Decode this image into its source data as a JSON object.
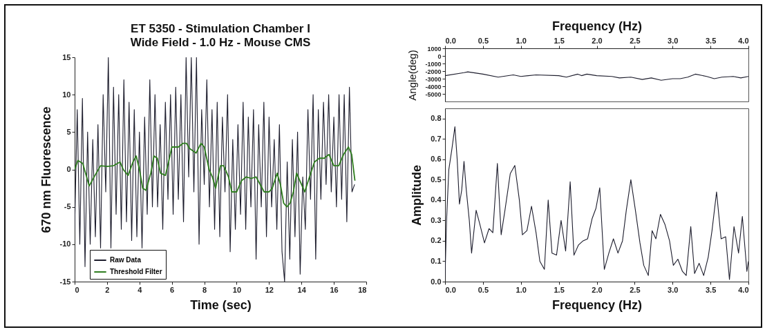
{
  "chart_data": [
    {
      "type": "line",
      "title": "ET 5350 - Stimulation Chamber I",
      "subtitle": "Wide Field - 1.0 Hz - Mouse CMS",
      "xlabel": "Time (sec)",
      "ylabel": "670 nm Fluorescence",
      "xlim": [
        0,
        18
      ],
      "xticks": [
        0,
        2,
        4,
        6,
        8,
        10,
        12,
        14,
        16,
        18
      ],
      "ylim": [
        -15,
        15
      ],
      "yticks": [
        -15,
        -10,
        -5,
        0,
        5,
        10,
        15
      ],
      "grid": false,
      "legend": "bottom left",
      "series": [
        {
          "name": "Raw Data",
          "color": "#1c1c2c",
          "x": [
            0,
            0.16,
            0.32,
            0.48,
            0.64,
            0.8,
            0.96,
            1.12,
            1.28,
            1.44,
            1.6,
            1.76,
            1.92,
            2.08,
            2.24,
            2.4,
            2.56,
            2.72,
            2.88,
            3.04,
            3.2,
            3.36,
            3.52,
            3.68,
            3.84,
            4,
            4.16,
            4.32,
            4.48,
            4.64,
            4.8,
            4.96,
            5.12,
            5.28,
            5.44,
            5.6,
            5.76,
            5.92,
            6.08,
            6.24,
            6.4,
            6.56,
            6.72,
            6.88,
            7.04,
            7.2,
            7.36,
            7.52,
            7.68,
            7.84,
            8,
            8.16,
            8.32,
            8.48,
            8.64,
            8.8,
            8.96,
            9.12,
            9.28,
            9.44,
            9.6,
            9.76,
            9.92,
            10.08,
            10.24,
            10.4,
            10.56,
            10.72,
            10.88,
            11.04,
            11.2,
            11.36,
            11.52,
            11.68,
            11.84,
            12,
            12.16,
            12.32,
            12.48,
            12.64,
            12.8,
            12.96,
            13.12,
            13.28,
            13.44,
            13.6,
            13.76,
            13.92,
            14.08,
            14.24,
            14.4,
            14.56,
            14.72,
            14.88,
            15.04,
            15.2,
            15.36,
            15.52,
            15.68,
            15.84,
            16,
            16.16,
            16.32,
            16.48,
            16.64,
            16.8,
            16.96,
            17.12,
            17.28
          ],
          "values": [
            -8,
            8,
            -10,
            9.5,
            -13,
            5,
            -10,
            4,
            -9,
            6,
            -10.5,
            10,
            -3,
            15,
            -10.5,
            11,
            -6,
            10,
            -8,
            12,
            -7,
            9,
            -9.5,
            8,
            -9,
            5,
            -10.5,
            7,
            -6,
            12,
            -5,
            10,
            -5,
            6,
            -8,
            9,
            -4,
            10,
            -6,
            11,
            -4,
            10,
            -7,
            15,
            -1,
            15,
            -3,
            15,
            -10,
            8,
            -2,
            12,
            -5,
            8,
            -8,
            9,
            -9,
            7,
            -3,
            10,
            -11,
            4,
            -8,
            6,
            -6,
            9,
            -8,
            7,
            -5,
            8,
            -12,
            6,
            -5,
            9,
            -9,
            7,
            -5,
            4,
            -8,
            6,
            -11,
            -15,
            1,
            -12,
            4,
            -9,
            5,
            -14,
            -1,
            -8,
            8,
            -4,
            10,
            -12,
            8,
            -4,
            9,
            -2,
            10,
            -3,
            7,
            -5,
            10,
            -4,
            10,
            -7,
            11,
            -3,
            -2
          ]
        },
        {
          "name": "Threshold Filter",
          "color": "#2e7d1e",
          "x": [
            0,
            0.2,
            0.5,
            0.9,
            1.2,
            1.6,
            2.0,
            2.4,
            2.8,
            3.0,
            3.3,
            3.6,
            3.8,
            4.0,
            4.2,
            4.4,
            4.7,
            4.9,
            5.1,
            5.3,
            5.6,
            5.8,
            6.0,
            6.4,
            6.7,
            6.9,
            7.1,
            7.5,
            7.8,
            8.0,
            8.3,
            8.5,
            8.7,
            9.0,
            9.2,
            9.5,
            9.7,
            10.0,
            10.3,
            10.6,
            10.9,
            11.2,
            11.4,
            11.7,
            12.0,
            12.2,
            12.5,
            12.7,
            12.9,
            13.1,
            13.3,
            13.5,
            13.7,
            14.0,
            14.2,
            14.5,
            14.8,
            15.1,
            15.4,
            15.7,
            16.0,
            16.3,
            16.6,
            16.9,
            17.1,
            17.3
          ],
          "values": [
            0,
            1.2,
            0.8,
            -2.2,
            -1,
            0.5,
            0.4,
            0.5,
            1,
            0,
            -0.8,
            1,
            1.8,
            0,
            -2.5,
            -2.8,
            -0.5,
            1.8,
            1.5,
            -0.5,
            -0.8,
            1,
            3,
            3,
            3.5,
            3.5,
            2.8,
            2.2,
            3.5,
            3,
            0,
            -1,
            -2.5,
            0.5,
            0.5,
            -1,
            -3,
            -3,
            -1.5,
            -1,
            -1.2,
            -1,
            -1.8,
            -3,
            -3,
            -2.5,
            -0.5,
            -2,
            -4.5,
            -5,
            -4.5,
            -3,
            -0.5,
            -2,
            -3,
            -1,
            1,
            1.5,
            1.5,
            2,
            0.5,
            0.5,
            2,
            3,
            2,
            -1.5
          ]
        }
      ]
    },
    {
      "type": "line",
      "xlabel": "Frequency (Hz)",
      "ylabel": "Angle(deg)",
      "xlim": [
        0,
        4
      ],
      "xticks": [
        {
          "value": 0,
          "label": "0.0"
        },
        {
          "value": 0.5,
          "label": "0.5"
        },
        {
          "value": 1,
          "label": "1.0"
        },
        {
          "value": 1.5,
          "label": "1.5"
        },
        {
          "value": 2,
          "label": "2.0"
        },
        {
          "value": 2.5,
          "label": "2.5"
        },
        {
          "value": 3,
          "label": "3.0"
        },
        {
          "value": 3.5,
          "label": "3.5"
        },
        {
          "value": 4,
          "label": "4.0"
        }
      ],
      "ylim": [
        -6000,
        1000
      ],
      "yticks": [
        -5000,
        -4000,
        -3000,
        -2000,
        -1000,
        0,
        1000
      ],
      "grid": false,
      "series": [
        {
          "color": "#1c1c2c",
          "x": [
            0,
            0.25,
            0.3,
            0.5,
            0.7,
            0.9,
            1.0,
            1.2,
            1.5,
            1.6,
            1.75,
            1.8,
            1.87,
            2.0,
            2.2,
            2.3,
            2.45,
            2.6,
            2.72,
            2.85,
            3.0,
            3.1,
            3.2,
            3.3,
            3.45,
            3.55,
            3.65,
            3.8,
            3.9,
            4.0
          ],
          "values": [
            -2600,
            -2200,
            -2100,
            -2400,
            -2800,
            -2500,
            -2700,
            -2500,
            -2600,
            -2800,
            -2400,
            -2600,
            -2400,
            -2600,
            -2700,
            -2900,
            -2800,
            -3100,
            -2900,
            -3200,
            -3000,
            -3000,
            -2800,
            -2400,
            -2700,
            -3000,
            -2800,
            -2700,
            -2900,
            -2700
          ]
        }
      ]
    },
    {
      "type": "line",
      "xlabel": "Frequency (Hz)",
      "ylabel": "Amplitude",
      "xlim": [
        0,
        4
      ],
      "xticks": [
        {
          "value": 0,
          "label": "0.0"
        },
        {
          "value": 0.5,
          "label": "0.5"
        },
        {
          "value": 1,
          "label": "1.0"
        },
        {
          "value": 1.5,
          "label": "1.5"
        },
        {
          "value": 2,
          "label": "2.0"
        },
        {
          "value": 2.5,
          "label": "2.5"
        },
        {
          "value": 3,
          "label": "3.0"
        },
        {
          "value": 3.5,
          "label": "3.5"
        },
        {
          "value": 4,
          "label": "4.0"
        }
      ],
      "ylim": [
        0,
        0.85
      ],
      "yticks": [
        {
          "value": 0,
          "label": "0.0"
        },
        0.1,
        0.2,
        0.3,
        0.4,
        0.5,
        0.6,
        0.7,
        0.8
      ],
      "grid": false,
      "series": [
        {
          "color": "#1c1c2c",
          "x": [
            0,
            0.02,
            0.05,
            0.09,
            0.13,
            0.16,
            0.19,
            0.22,
            0.25,
            0.28,
            0.32,
            0.35,
            0.41,
            0.46,
            0.52,
            0.58,
            0.63,
            0.69,
            0.74,
            0.79,
            0.86,
            0.92,
            0.98,
            1.02,
            1.08,
            1.14,
            1.2,
            1.25,
            1.31,
            1.36,
            1.41,
            1.47,
            1.53,
            1.59,
            1.65,
            1.7,
            1.76,
            1.82,
            1.88,
            1.94,
            1.99,
            2.04,
            2.1,
            2.16,
            2.22,
            2.28,
            2.34,
            2.39,
            2.45,
            2.51,
            2.57,
            2.62,
            2.68,
            2.73,
            2.78,
            2.84,
            2.9,
            2.96,
            3.01,
            3.07,
            3.13,
            3.18,
            3.24,
            3.29,
            3.35,
            3.41,
            3.47,
            3.52,
            3.58,
            3.64,
            3.7,
            3.75,
            3.81,
            3.87,
            3.92,
            3.98,
            4.0
          ],
          "values": [
            0.02,
            0.3,
            0.55,
            0.65,
            0.76,
            0.6,
            0.38,
            0.45,
            0.59,
            0.45,
            0.3,
            0.14,
            0.35,
            0.28,
            0.19,
            0.26,
            0.24,
            0.58,
            0.23,
            0.35,
            0.53,
            0.57,
            0.4,
            0.23,
            0.25,
            0.37,
            0.24,
            0.1,
            0.06,
            0.4,
            0.14,
            0.13,
            0.3,
            0.15,
            0.49,
            0.13,
            0.18,
            0.2,
            0.21,
            0.31,
            0.36,
            0.46,
            0.06,
            0.14,
            0.21,
            0.14,
            0.2,
            0.35,
            0.5,
            0.35,
            0.19,
            0.08,
            0.03,
            0.25,
            0.21,
            0.33,
            0.28,
            0.2,
            0.08,
            0.11,
            0.05,
            0.03,
            0.27,
            0.04,
            0.09,
            0.03,
            0.12,
            0.25,
            0.44,
            0.21,
            0.22,
            0.01,
            0.27,
            0.14,
            0.32,
            0.05,
            0.1
          ]
        }
      ]
    }
  ]
}
